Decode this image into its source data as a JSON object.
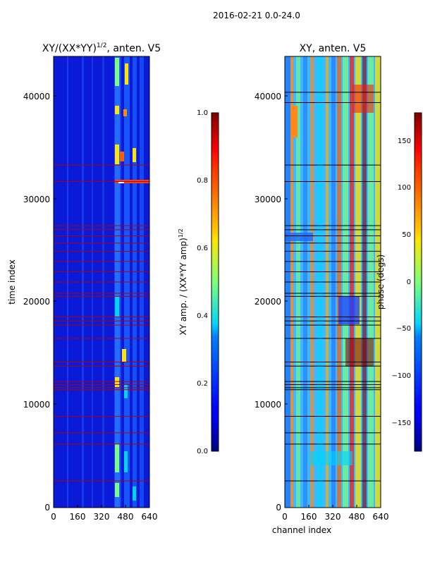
{
  "suptitle": "2016-02-21 0.0-24.0",
  "chart_data": [
    {
      "type": "heatmap",
      "title": "XY/(XX*YY)",
      "title_exponent": "1/2",
      "title_suffix": ", anten. V5",
      "xlabel": "",
      "ylabel": "time index",
      "xlim": [
        0,
        640
      ],
      "ylim": [
        0,
        44000
      ],
      "xticks": [
        0,
        160,
        320,
        480,
        640
      ],
      "yticks": [
        0,
        10000,
        20000,
        30000,
        40000
      ],
      "colormap": "jet",
      "colorbar": {
        "label": "XY amp. / (XX*YY amp)",
        "label_exponent": "1/2",
        "range": [
          0.0,
          1.0
        ],
        "ticks": [
          "0.0",
          "0.2",
          "0.4",
          "0.6",
          "0.8",
          "1.0"
        ]
      },
      "flagged_time_rows": [
        2600,
        6200,
        7300,
        8900,
        11500,
        11700,
        12000,
        12300,
        13800,
        14200,
        16500,
        17800,
        18200,
        18600,
        20600,
        20900,
        22000,
        23000,
        24000,
        25000,
        25800,
        26500,
        27100,
        27500,
        31800,
        33400
      ]
    },
    {
      "type": "heatmap",
      "title": "XY, anten. V5",
      "xlabel": "channel index",
      "ylabel": "",
      "xlim": [
        0,
        640
      ],
      "ylim": [
        0,
        44000
      ],
      "xticks": [
        0,
        160,
        320,
        480,
        640
      ],
      "yticks": [
        0,
        10000,
        20000,
        30000,
        40000
      ],
      "colormap": "jet",
      "colorbar": {
        "label": "phase (degs)",
        "range": [
          -180,
          180
        ],
        "ticks": [
          "−150",
          "−100",
          "−50",
          "0",
          "50",
          "100",
          "150"
        ]
      },
      "flagged_time_rows": [
        2600,
        6200,
        7300,
        8900,
        11500,
        11700,
        12000,
        12300,
        13800,
        14200,
        16500,
        17800,
        18200,
        18600,
        20600,
        20900,
        22000,
        23000,
        24000,
        25000,
        25800,
        26500,
        27100,
        27500,
        31800,
        33400,
        39500,
        40500
      ]
    }
  ]
}
